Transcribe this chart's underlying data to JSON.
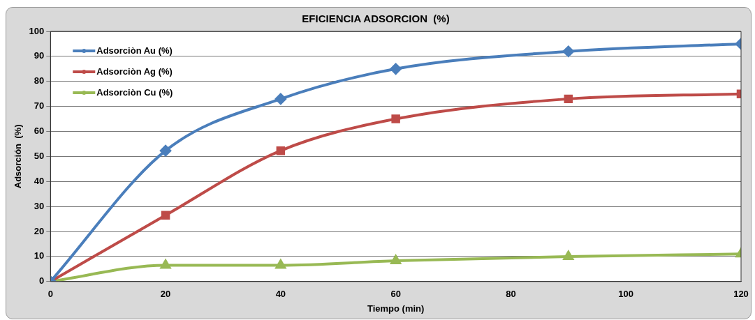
{
  "chart_data": {
    "type": "line",
    "title": "EFICIENCIA ADSORCION  (%)",
    "xlabel": "Tiempo (min)",
    "ylabel": "Adsorción  (%)",
    "x": [
      0,
      20,
      40,
      60,
      90,
      120
    ],
    "series": [
      {
        "name": "Adsorciòn Au (%)",
        "color": "#4a7ebb",
        "marker": "diamond",
        "values": [
          0,
          52.3,
          73,
          85,
          92,
          95
        ]
      },
      {
        "name": "Adsorciòn Ag (%)",
        "color": "#be4b48",
        "marker": "square",
        "values": [
          0,
          26.5,
          52.3,
          65,
          73,
          75
        ]
      },
      {
        "name": "Adsorciòn Cu (%)",
        "color": "#98b954",
        "marker": "triangle",
        "values": [
          0,
          6.5,
          6.5,
          8.3,
          10,
          11
        ]
      }
    ],
    "xlim": [
      0,
      120
    ],
    "xticks": [
      0,
      20,
      40,
      60,
      80,
      100,
      120
    ],
    "ylim": [
      0,
      100
    ],
    "yticks": [
      0,
      10,
      20,
      30,
      40,
      50,
      60,
      70,
      80,
      90,
      100
    ],
    "grid": "y",
    "legend": "top left",
    "line_style": "solid"
  }
}
